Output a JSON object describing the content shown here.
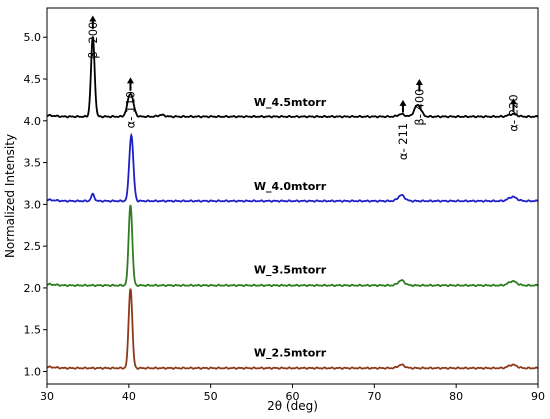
{
  "chart_data": {
    "type": "line",
    "xlabel": "2θ (deg)",
    "ylabel": "Normalized Intensity",
    "xlim": [
      30,
      90
    ],
    "ylim": [
      0.85,
      5.35
    ],
    "xticks": [
      30,
      40,
      50,
      60,
      70,
      80,
      90
    ],
    "xtick_labels": [
      "30",
      "40",
      "50",
      "60",
      "70",
      "80",
      "90"
    ],
    "yticks": [
      1.0,
      1.5,
      2.0,
      2.5,
      3.0,
      3.5,
      4.0,
      4.5,
      5.0
    ],
    "ytick_labels": [
      "1.0",
      "1.5",
      "2.0",
      "2.5",
      "3.0",
      "3.5",
      "4.0",
      "4.5",
      "5.0"
    ],
    "grid": false,
    "series": [
      {
        "name": "W_4.5mtorr",
        "color": "#000000",
        "baseline": 4.05,
        "label_x": 59.7,
        "label_y": 4.18,
        "peaks": [
          {
            "x": 35.6,
            "height": 0.95,
            "width": 0.22
          },
          {
            "x": 40.2,
            "height": 0.28,
            "width": 0.35
          },
          {
            "x": 44.0,
            "height": 0.02,
            "width": 0.4
          },
          {
            "x": 73.3,
            "height": 0.03,
            "width": 0.4
          },
          {
            "x": 75.3,
            "height": 0.14,
            "width": 0.4
          },
          {
            "x": 86.9,
            "height": 0.03,
            "width": 0.5
          }
        ]
      },
      {
        "name": "W_4.0mtorr",
        "color": "#1f1fc8",
        "baseline": 3.04,
        "label_x": 59.7,
        "label_y": 3.17,
        "peaks": [
          {
            "x": 35.6,
            "height": 0.08,
            "width": 0.2
          },
          {
            "x": 40.3,
            "height": 0.79,
            "width": 0.25
          },
          {
            "x": 73.3,
            "height": 0.07,
            "width": 0.4
          },
          {
            "x": 86.9,
            "height": 0.05,
            "width": 0.5
          }
        ]
      },
      {
        "name": "W_3.5mtorr",
        "color": "#2e7d1e",
        "baseline": 2.03,
        "label_x": 59.7,
        "label_y": 2.17,
        "peaks": [
          {
            "x": 40.2,
            "height": 0.97,
            "width": 0.22
          },
          {
            "x": 73.3,
            "height": 0.06,
            "width": 0.4
          },
          {
            "x": 86.9,
            "height": 0.05,
            "width": 0.5
          }
        ]
      },
      {
        "name": "W_2.5mtorr",
        "color": "#8b3a1a",
        "baseline": 1.04,
        "label_x": 59.7,
        "label_y": 1.18,
        "peaks": [
          {
            "x": 40.2,
            "height": 0.96,
            "width": 0.22
          },
          {
            "x": 73.3,
            "height": 0.04,
            "width": 0.4
          },
          {
            "x": 86.9,
            "height": 0.04,
            "width": 0.5
          }
        ]
      }
    ],
    "annotations": [
      {
        "text": "β- 200",
        "x": 35.6,
        "y": 5.45,
        "arrow_tail": 5.1,
        "arrow_head": 5.26
      },
      {
        "text": "α- 110",
        "x": 40.2,
        "y": 4.62,
        "arrow_tail": 4.36,
        "arrow_head": 4.52
      },
      {
        "text": "α- 211",
        "x": 73.5,
        "y": 4.24,
        "arrow_tail": 4.1,
        "arrow_head": 4.25
      },
      {
        "text": "β- 400",
        "x": 75.5,
        "y": 4.65,
        "arrow_tail": 4.35,
        "arrow_head": 4.5
      },
      {
        "text": "α- 220",
        "x": 87.0,
        "y": 4.58,
        "arrow_tail": 4.11,
        "arrow_head": 4.27
      }
    ]
  }
}
